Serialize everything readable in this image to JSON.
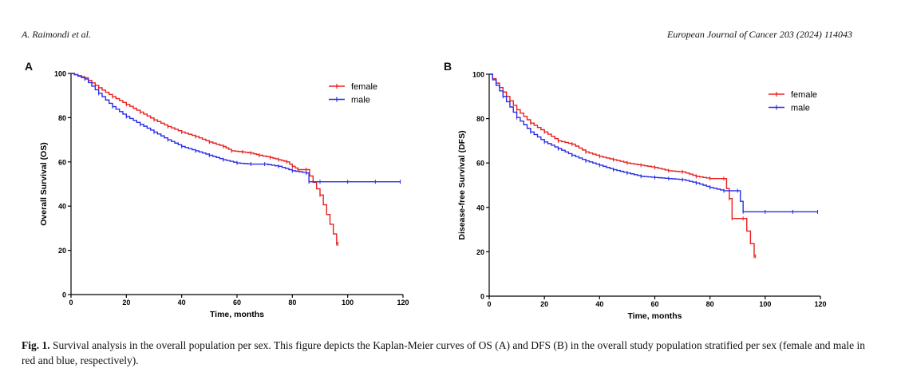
{
  "header": {
    "authors": "A. Raimondi et al.",
    "journal": "European Journal of Cancer 203 (2024) 114043"
  },
  "caption": {
    "label": "Fig. 1.",
    "text": "Survival analysis in the overall population per sex. This figure depicts the Kaplan-Meier curves of OS (A) and DFS (B) in the overall study population stratified per sex (female and male in red and blue, respectively)."
  },
  "colors": {
    "female": "#e8201e",
    "male": "#2a2ee6"
  },
  "chart_data": [
    {
      "panel": "A",
      "type": "line",
      "step": true,
      "xlabel": "Time, months",
      "ylabel": "Overall Survival (OS)",
      "xlim": [
        0,
        120
      ],
      "ylim": [
        0,
        100
      ],
      "xticks": [
        0,
        20,
        40,
        60,
        80,
        100,
        120
      ],
      "yticks": [
        0,
        20,
        40,
        60,
        80,
        100
      ],
      "legend_position": "top-right",
      "series": [
        {
          "name": "female",
          "color": "#e8201e",
          "x": [
            0,
            5,
            10,
            15,
            20,
            25,
            30,
            35,
            40,
            45,
            50,
            55,
            58,
            62,
            65,
            68,
            72,
            75,
            78,
            80,
            82,
            85,
            90,
            96,
            96.5
          ],
          "y": [
            100,
            98,
            93.5,
            89.5,
            86,
            82.5,
            79,
            76,
            73.5,
            71.5,
            69,
            67,
            65,
            64.5,
            64,
            63,
            62,
            61,
            60,
            58,
            56.5,
            56.5,
            45,
            23,
            23
          ]
        },
        {
          "name": "male",
          "color": "#2a2ee6",
          "x": [
            0,
            5,
            10,
            15,
            20,
            25,
            30,
            35,
            40,
            45,
            50,
            55,
            60,
            65,
            70,
            75,
            80,
            85,
            86,
            90,
            100,
            110,
            119
          ],
          "y": [
            100,
            97.5,
            91,
            85,
            80.5,
            77,
            73.5,
            70,
            67,
            65,
            63,
            61,
            59.5,
            59,
            59,
            58,
            56,
            55,
            51,
            51,
            51,
            51,
            51
          ]
        }
      ]
    },
    {
      "panel": "B",
      "type": "line",
      "step": true,
      "xlabel": "Time, months",
      "ylabel": "Disease-free Survival (DFS)",
      "xlim": [
        0,
        120
      ],
      "ylim": [
        0,
        100
      ],
      "xticks": [
        0,
        20,
        40,
        60,
        80,
        100,
        120
      ],
      "yticks": [
        0,
        20,
        40,
        60,
        80,
        100
      ],
      "legend_position": "top-right",
      "series": [
        {
          "name": "female",
          "color": "#e8201e",
          "x": [
            0,
            5,
            10,
            15,
            20,
            25,
            30,
            35,
            40,
            45,
            50,
            55,
            60,
            65,
            70,
            75,
            80,
            85,
            87,
            88,
            92,
            96,
            96.5
          ],
          "y": [
            100,
            92,
            84,
            78,
            74,
            70,
            68.5,
            65,
            63,
            61.5,
            60,
            59,
            58,
            56.5,
            56,
            54,
            53,
            53,
            44,
            35,
            35,
            18,
            18
          ]
        },
        {
          "name": "male",
          "color": "#2a2ee6",
          "x": [
            0,
            5,
            10,
            15,
            20,
            25,
            30,
            35,
            40,
            45,
            50,
            55,
            60,
            65,
            70,
            75,
            80,
            85,
            90,
            92,
            100,
            110,
            119
          ],
          "y": [
            100,
            90,
            80.5,
            74,
            69.5,
            66.5,
            63.5,
            61,
            59,
            57,
            55.5,
            54,
            53.5,
            53,
            52.5,
            51,
            49,
            47.5,
            47.5,
            38,
            38,
            38,
            38
          ]
        }
      ]
    }
  ]
}
